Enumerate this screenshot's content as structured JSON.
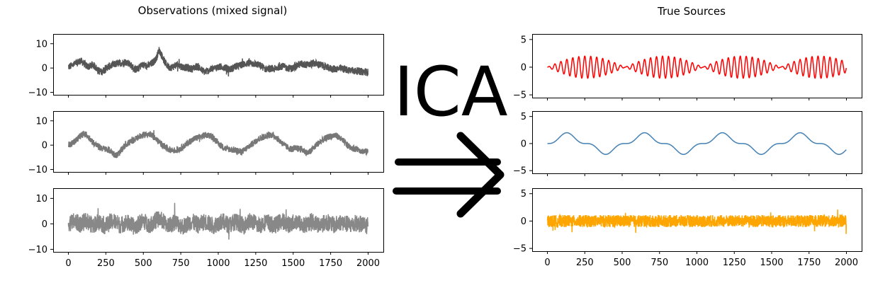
{
  "center_label": "ICA",
  "chart_data": [
    {
      "type": "line",
      "title": "Observations (mixed signal)",
      "xlim": [
        0,
        2000
      ],
      "x_ticks": [
        0,
        250,
        500,
        750,
        1000,
        1250,
        1500,
        1750,
        2000
      ],
      "n_points": 2000,
      "panels": [
        {
          "color": "#555555",
          "ylim": [
            -11,
            14
          ],
          "y_ticks": [
            -10,
            0,
            10
          ],
          "values": [
            0.5,
            0.9,
            1.6,
            2.4,
            3.0,
            2.1,
            0.8,
            0.6,
            1.5,
            0.3,
            -1.2,
            -1.6,
            -0.6,
            0.4,
            0.9,
            1.4,
            1.8,
            2.0,
            2.2,
            2.6,
            2.0,
            0.7,
            -0.6,
            -0.4,
            1.0,
            1.1,
            0.8,
            1.4,
            2.4,
            3.8,
            7.5,
            4.8,
            2.1,
            0.6,
            0.2,
            0.8,
            1.3,
            0.9,
            0.3,
            0.2,
            -0.2,
            -0.3,
            0.5,
            0.5,
            -0.8,
            -1.5,
            -1.2,
            -0.6,
            -0.2,
            0.2,
            0.4,
            0.5,
            0.1,
            -0.6,
            -0.3,
            0.6,
            0.8,
            1.2,
            1.6,
            1.9,
            2.0,
            1.9,
            1.6,
            1.2,
            0.7,
            -0.4,
            -0.3,
            -0.3,
            -0.5,
            0.1,
            0.8,
            0.6,
            0.1,
            -0.1,
            -0.2,
            0.6,
            1.4,
            1.7,
            1.5,
            1.3,
            1.5,
            2.0,
            1.8,
            1.4,
            1.0,
            0.4,
            0.0,
            -0.3,
            -0.4,
            -0.3,
            -0.2,
            -0.5,
            -0.7,
            -0.9,
            -1.1,
            -1.2,
            -1.3,
            -1.5,
            -1.6,
            -1.8
          ],
          "noise": 1.8
        },
        {
          "color": "#777777",
          "ylim": [
            -11,
            14
          ],
          "y_ticks": [
            -10,
            0,
            10
          ],
          "values": [
            0.2,
            0.5,
            1.5,
            2.6,
            3.8,
            4.6,
            4.2,
            2.8,
            1.4,
            0.2,
            -0.6,
            -1.2,
            -1.6,
            -1.8,
            -2.4,
            -3.6,
            -4.2,
            -3.0,
            -1.2,
            0.3,
            1.0,
            1.6,
            2.4,
            3.2,
            3.8,
            4.2,
            4.5,
            4.3,
            3.6,
            2.4,
            1.2,
            0.2,
            -0.8,
            -1.6,
            -2.0,
            -2.2,
            -2.0,
            -1.4,
            -0.6,
            0.4,
            1.4,
            2.2,
            2.8,
            3.2,
            3.6,
            4.0,
            4.2,
            3.8,
            2.8,
            1.4,
            0.2,
            -0.8,
            -1.4,
            -1.6,
            -1.8,
            -2.0,
            -2.4,
            -2.8,
            -2.2,
            -1.2,
            -0.2,
            0.8,
            1.8,
            2.6,
            3.2,
            3.6,
            4.0,
            4.2,
            3.8,
            2.8,
            1.6,
            0.4,
            -0.6,
            -1.4,
            -1.6,
            -1.4,
            -1.4,
            -1.6,
            -2.4,
            -3.2,
            -2.6,
            -1.2,
            0.2,
            1.2,
            2.0,
            2.8,
            3.4,
            3.8,
            4.0,
            3.6,
            2.6,
            1.4,
            0.2,
            -0.6,
            -1.2,
            -1.6,
            -2.0,
            -2.4,
            -2.6,
            -2.8
          ],
          "noise": 1.6
        },
        {
          "color": "#888888",
          "ylim": [
            -11,
            14
          ],
          "y_ticks": [
            -10,
            0,
            10
          ],
          "values": [
            0.3,
            0.6,
            1.0,
            0.4,
            -0.2,
            0.5,
            1.2,
            0.3,
            -0.6,
            0.2,
            0.9,
            0.1,
            -0.8,
            -0.2,
            0.7,
            1.1,
            0.4,
            -0.5,
            -0.1,
            0.6,
            0.2,
            -0.7,
            -1.2,
            -0.3,
            0.8,
            1.0,
            0.2,
            -0.4,
            0.4,
            1.5,
            2.0,
            1.2,
            0.2,
            -0.5,
            -0.2,
            0.5,
            0.3,
            -0.6,
            -1.0,
            -0.3,
            0.6,
            0.8,
            0.1,
            -0.5,
            0.2,
            0.9,
            0.5,
            -0.3,
            -0.7,
            0.0,
            0.7,
            0.9,
            0.3,
            -0.4,
            0.1,
            0.8,
            0.6,
            -0.2,
            -0.6,
            0.2,
            1.0,
            0.8,
            0.0,
            -0.6,
            -0.1,
            0.7,
            0.5,
            -0.3,
            -0.8,
            0.0,
            0.8,
            1.0,
            0.3,
            -0.4,
            0.2,
            0.9,
            0.6,
            -0.2,
            -0.7,
            0.1,
            0.9,
            0.8,
            0.1,
            -0.5,
            0.0,
            0.7,
            0.5,
            -0.2,
            -0.6,
            0.1,
            0.7,
            0.5,
            -0.1,
            -0.5,
            -0.3,
            0.2,
            0.0,
            -0.4,
            -0.6,
            -0.8
          ],
          "noise": 4.0
        }
      ]
    },
    {
      "type": "line",
      "title": "True Sources",
      "xlim": [
        0,
        2000
      ],
      "x_ticks": [
        0,
        250,
        500,
        750,
        1000,
        1250,
        1500,
        1750,
        2000
      ],
      "n_points": 2000,
      "panels": [
        {
          "color": "#ff0000",
          "ylim": [
            -5.5,
            6
          ],
          "y_ticks": [
            -5,
            0,
            5
          ],
          "series": "amplitude-modulated sine",
          "amplitude": 2,
          "carrier_period": 40,
          "envelope_period": 520
        },
        {
          "color": "#4682b4",
          "ylim": [
            -5.5,
            6
          ],
          "y_ticks": [
            -5,
            0,
            5
          ],
          "series": "periodic bumps",
          "amplitude": 2,
          "period": 520
        },
        {
          "color": "#ffa500",
          "ylim": [
            -5.5,
            6
          ],
          "y_ticks": [
            -5,
            0,
            5
          ],
          "series": "impulsive noise",
          "noise": 1.0
        }
      ]
    }
  ]
}
